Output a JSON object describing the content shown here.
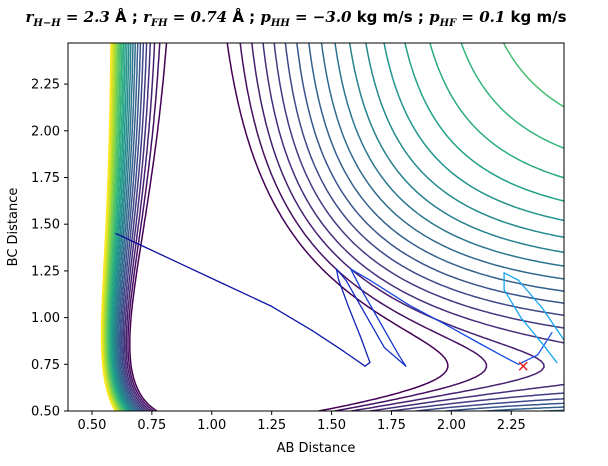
{
  "chart_data": {
    "type": "contour",
    "title_parts": [
      {
        "text": "r",
        "style": "math"
      },
      {
        "text": "H−H",
        "style": "sub"
      },
      {
        "text": " = 2.3 ",
        "style": "math"
      },
      {
        "text": "Å ; ",
        "style": "bold"
      },
      {
        "text": "r",
        "style": "math"
      },
      {
        "text": "FH",
        "style": "sub"
      },
      {
        "text": " = 0.74 ",
        "style": "math"
      },
      {
        "text": "Å ; ",
        "style": "bold"
      },
      {
        "text": "p",
        "style": "math"
      },
      {
        "text": "HH",
        "style": "sub"
      },
      {
        "text": " = −3.0 ",
        "style": "math"
      },
      {
        "text": "kg m/s ; ",
        "style": "bold"
      },
      {
        "text": "p",
        "style": "math"
      },
      {
        "text": "HF",
        "style": "sub"
      },
      {
        "text": " = 0.1 ",
        "style": "math"
      },
      {
        "text": "kg m/s",
        "style": "bold"
      }
    ],
    "xlabel": "AB Distance",
    "ylabel": "BC Distance",
    "xlim": [
      0.4,
      2.47
    ],
    "ylim": [
      0.5,
      2.47
    ],
    "xticks": [
      0.5,
      0.75,
      1.0,
      1.25,
      1.5,
      1.75,
      2.0,
      2.25
    ],
    "xtick_labels": [
      "0.50",
      "0.75",
      "1.00",
      "1.25",
      "1.50",
      "1.75",
      "2.00",
      "2.25"
    ],
    "yticks": [
      0.5,
      0.75,
      1.0,
      1.25,
      1.5,
      1.75,
      2.0,
      2.25
    ],
    "ytick_labels": [
      "0.50",
      "0.75",
      "1.00",
      "1.25",
      "1.50",
      "1.75",
      "2.00",
      "2.25"
    ],
    "grid": false,
    "colormap": "viridis",
    "contour_levels": 24,
    "well_depth_y": 0.74,
    "trajectory": {
      "points": [
        [
          0.6,
          1.45
        ],
        [
          0.7,
          1.39
        ],
        [
          0.85,
          1.3
        ],
        [
          1.05,
          1.18
        ],
        [
          1.25,
          1.06
        ],
        [
          1.42,
          0.93
        ],
        [
          1.55,
          0.82
        ],
        [
          1.64,
          0.74
        ],
        [
          1.66,
          0.76
        ],
        [
          1.62,
          0.9
        ],
        [
          1.57,
          1.06
        ],
        [
          1.53,
          1.2
        ],
        [
          1.52,
          1.26
        ],
        [
          1.56,
          1.2
        ],
        [
          1.64,
          1.02
        ],
        [
          1.72,
          0.84
        ],
        [
          1.81,
          0.74
        ],
        [
          1.78,
          0.8
        ],
        [
          1.7,
          0.98
        ],
        [
          1.62,
          1.16
        ],
        [
          1.58,
          1.26
        ],
        [
          1.66,
          1.2
        ],
        [
          1.82,
          1.07
        ],
        [
          1.98,
          0.96
        ],
        [
          2.12,
          0.86
        ],
        [
          2.22,
          0.79
        ],
        [
          2.28,
          0.75
        ],
        [
          2.36,
          0.8
        ],
        [
          2.42,
          0.92
        ]
      ]
    },
    "trajectory2": {
      "points": [
        [
          2.44,
          0.76
        ],
        [
          2.38,
          0.86
        ],
        [
          2.29,
          1.0
        ],
        [
          2.22,
          1.15
        ],
        [
          2.22,
          1.24
        ],
        [
          2.28,
          1.2
        ],
        [
          2.38,
          1.05
        ],
        [
          2.47,
          0.88
        ]
      ]
    },
    "marker": {
      "x": 2.3,
      "y": 0.74,
      "symbol": "x",
      "color": "#e0242b"
    },
    "trajectory_colors": [
      "#0d0d9c",
      "#1a52ee",
      "#13a5f0"
    ]
  }
}
